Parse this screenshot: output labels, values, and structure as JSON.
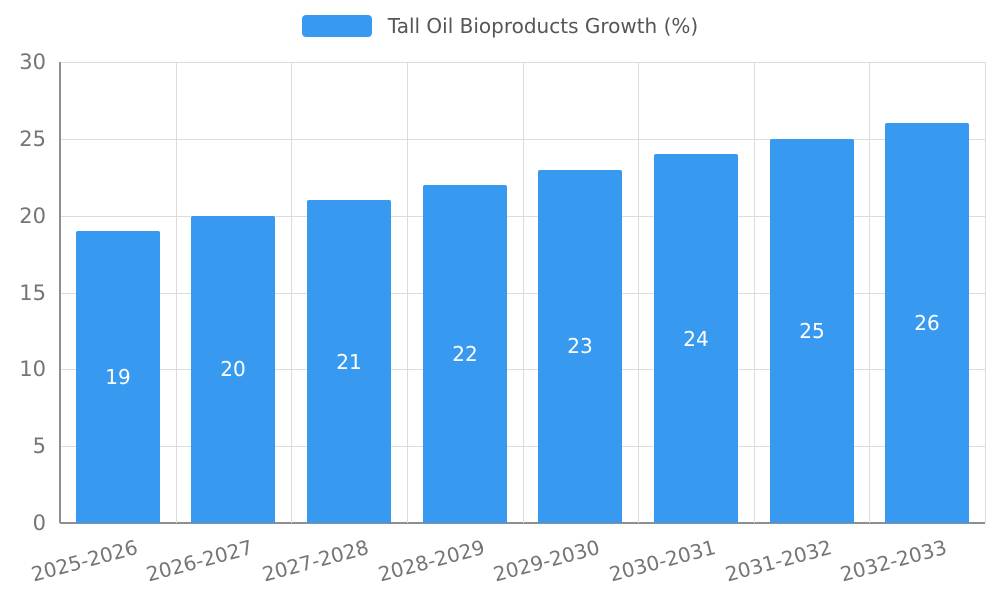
{
  "chart_data": {
    "type": "bar",
    "title": "Tall Oil Bioproducts Growth (%)",
    "categories": [
      "2025-2026",
      "2026-2027",
      "2027-2028",
      "2028-2029",
      "2029-2030",
      "2030-2031",
      "2031-2032",
      "2032-2033"
    ],
    "values": [
      19,
      20,
      21,
      22,
      23,
      24,
      25,
      26
    ],
    "xlabel": "",
    "ylabel": "",
    "ylim": [
      0,
      30
    ],
    "ytick_step": 5,
    "ytick_labels": [
      "0",
      "5",
      "10",
      "15",
      "20",
      "25",
      "30"
    ],
    "grid": true,
    "legend_position": "top",
    "x_label_rotation_deg": -15,
    "colors": {
      "bar": "#3899f0",
      "value_label": "#ffffff",
      "axis_label": "#757575",
      "gridline": "#dcdcdc",
      "axis_line": "#8f8f8f",
      "legend_text": "#565656"
    }
  }
}
